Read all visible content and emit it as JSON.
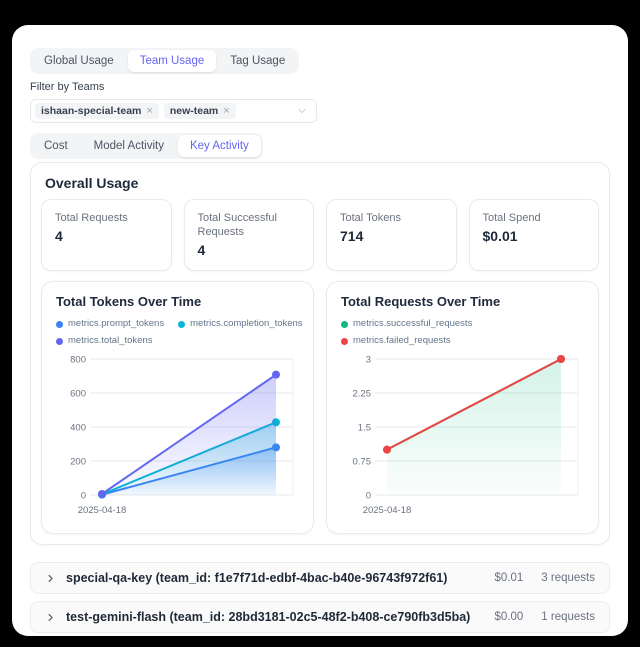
{
  "usage_tabs": [
    {
      "label": "Global Usage",
      "active": false
    },
    {
      "label": "Team Usage",
      "active": true
    },
    {
      "label": "Tag Usage",
      "active": false
    }
  ],
  "filter": {
    "label": "Filter by Teams",
    "tags": [
      "ishaan-special-team",
      "new-team"
    ]
  },
  "activity_tabs": [
    {
      "label": "Cost",
      "active": false
    },
    {
      "label": "Model Activity",
      "active": false
    },
    {
      "label": "Key Activity",
      "active": true
    }
  ],
  "overall": {
    "title": "Overall Usage",
    "stats": [
      {
        "label": "Total Requests",
        "value": "4"
      },
      {
        "label": "Total Successful Requests",
        "value": "4"
      },
      {
        "label": "Total Tokens",
        "value": "714"
      },
      {
        "label": "Total Spend",
        "value": "$0.01"
      }
    ]
  },
  "chart_data": [
    {
      "type": "area",
      "title": "Total Tokens Over Time",
      "x": [
        "2025-04-18",
        ""
      ],
      "xlabel": "",
      "ylabel": "",
      "ylim": [
        0,
        800
      ],
      "yticks": [
        0,
        200,
        400,
        600,
        800
      ],
      "grid": true,
      "legend_position": "top",
      "series": [
        {
          "name": "metrics.prompt_tokens",
          "color": "#3b82f6",
          "values": [
            2,
            280
          ],
          "fill": true,
          "legend_row": 0
        },
        {
          "name": "metrics.completion_tokens",
          "color": "#06b6d4",
          "values": [
            4,
            428
          ],
          "fill": true,
          "legend_row": 0
        },
        {
          "name": "metrics.total_tokens",
          "color": "#6366f1",
          "values": [
            6,
            708
          ],
          "fill": true,
          "legend_row": 1
        }
      ]
    },
    {
      "type": "area",
      "title": "Total Requests Over Time",
      "x": [
        "2025-04-18",
        ""
      ],
      "xlabel": "",
      "ylabel": "",
      "ylim": [
        0,
        3
      ],
      "yticks": [
        0,
        0.75,
        1.5,
        2.25,
        3
      ],
      "grid": true,
      "legend_position": "top",
      "series": [
        {
          "name": "metrics.successful_requests",
          "color": "#10b981",
          "values": [
            1,
            3
          ],
          "fill": true,
          "legend_row": 0
        },
        {
          "name": "metrics.failed_requests",
          "color": "#ef4444",
          "values": [
            1,
            3
          ],
          "fill": false,
          "legend_row": 1
        }
      ]
    }
  ],
  "keys": [
    {
      "name": "special-qa-key (team_id: f1e7f71d-edbf-4bac-b40e-96743f972f61)",
      "spend": "$0.01",
      "requests": "3 requests"
    },
    {
      "name": "test-gemini-flash (team_id: 28bd3181-02c5-48f2-b408-ce790fb3d5ba)",
      "spend": "$0.00",
      "requests": "1 requests"
    }
  ],
  "colors": {
    "accent": "#6366f1",
    "grid": "#e7e9ee",
    "tick_text": "#6b7280",
    "card_border": "#e8eaee",
    "page_bg": "#000000"
  }
}
